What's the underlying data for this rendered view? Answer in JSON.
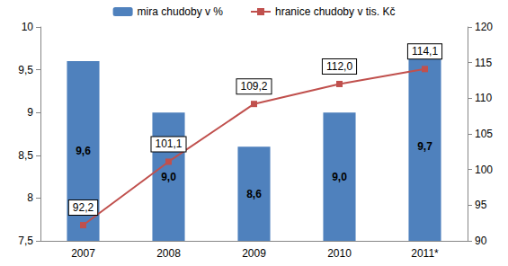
{
  "chart_data": {
    "type": "bar",
    "categories": [
      "2007",
      "2008",
      "2009",
      "2010",
      "2011*"
    ],
    "series": [
      {
        "name": "mira chudoby v %",
        "type": "bar",
        "color": "#4f81bd",
        "values": [
          9.6,
          9.0,
          8.6,
          9.0,
          9.7
        ],
        "value_labels": [
          "9,6",
          "9,0",
          "8,6",
          "9,0",
          "9,7"
        ]
      },
      {
        "name": "hranice chudoby v tis. Kč",
        "type": "line",
        "axis": "y2",
        "color": "#c0504d",
        "marker": "square",
        "values": [
          92.2,
          101.1,
          109.2,
          112.0,
          114.1
        ],
        "value_labels": [
          "92,2",
          "101,1",
          "109,2",
          "112,0",
          "114,1"
        ]
      }
    ],
    "ylim": [
      7.5,
      10
    ],
    "yticks": [
      {
        "value": 7.5,
        "label": "7,5"
      },
      8,
      {
        "value": 8.5,
        "label": "8,5"
      },
      9,
      {
        "value": 9.5,
        "label": "9,5"
      },
      10
    ],
    "y2lim": [
      90,
      120
    ],
    "y2ticks": [
      90,
      95,
      100,
      105,
      110,
      115,
      120
    ],
    "legend": "top",
    "data_labels": true,
    "grid": false
  }
}
